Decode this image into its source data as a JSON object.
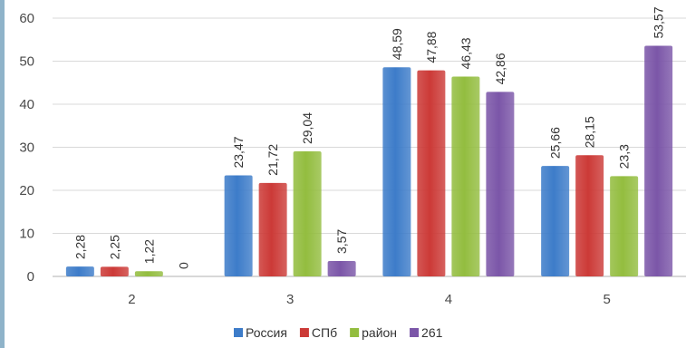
{
  "chart_data": {
    "type": "bar",
    "categories": [
      "2",
      "3",
      "4",
      "5"
    ],
    "series": [
      {
        "name": "Россия",
        "values": [
          2.28,
          23.47,
          48.59,
          25.66
        ],
        "labels": [
          "2,28",
          "23,47",
          "48,59",
          "25,66"
        ],
        "color": "#3d7cc9"
      },
      {
        "name": "СПб",
        "values": [
          2.25,
          21.72,
          47.88,
          28.15
        ],
        "labels": [
          "2,25",
          "21,72",
          "47,88",
          "28,15"
        ],
        "color": "#cc3a37"
      },
      {
        "name": "район",
        "values": [
          1.22,
          29.04,
          46.43,
          23.3
        ],
        "labels": [
          "1,22",
          "29,04",
          "46,43",
          "23,3"
        ],
        "color": "#93bd3f"
      },
      {
        "name": "261",
        "values": [
          0,
          3.57,
          42.86,
          53.57
        ],
        "labels": [
          "0",
          "3,57",
          "42,86",
          "53,57"
        ],
        "color": "#7b56a8"
      }
    ],
    "y_ticks": [
      "0",
      "10",
      "20",
      "30",
      "40",
      "50",
      "60"
    ],
    "ylim": [
      0,
      60
    ],
    "grid": true,
    "legend_position": "bottom"
  }
}
